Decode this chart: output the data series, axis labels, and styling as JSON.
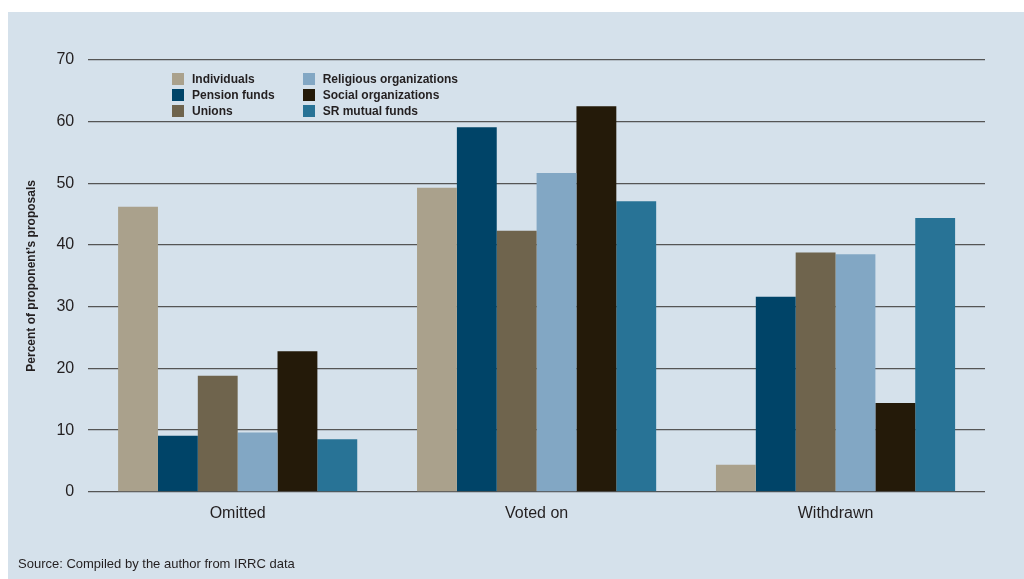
{
  "chart_data": {
    "type": "bar",
    "ylabel": "Percent of proponent’s proposals",
    "categories": [
      "Omitted",
      "Voted on",
      "Withdrawn"
    ],
    "series": [
      {
        "name": "Individuals",
        "color": "#aaa18c",
        "values": [
          46.2,
          49.3,
          4.4
        ]
      },
      {
        "name": "Pension funds",
        "color": "#004468",
        "values": [
          9.1,
          59.1,
          31.6
        ]
      },
      {
        "name": "Unions",
        "color": "#6f644d",
        "values": [
          18.8,
          42.3,
          38.8
        ]
      },
      {
        "name": "Religious organizations",
        "color": "#82a7c4",
        "values": [
          9.6,
          51.7,
          38.5
        ]
      },
      {
        "name": "Social organizations",
        "color": "#241a09",
        "values": [
          22.8,
          62.5,
          14.4
        ]
      },
      {
        "name": "SR mutual funds",
        "color": "#287396",
        "values": [
          8.5,
          47.1,
          44.4
        ]
      }
    ],
    "ylim": [
      0,
      70
    ],
    "yticks": [
      0,
      10,
      20,
      30,
      40,
      50,
      60,
      70
    ],
    "grid": "y",
    "legend": "top left",
    "annotations": [
      "Source: Compiled by the author from IRRC data"
    ]
  }
}
